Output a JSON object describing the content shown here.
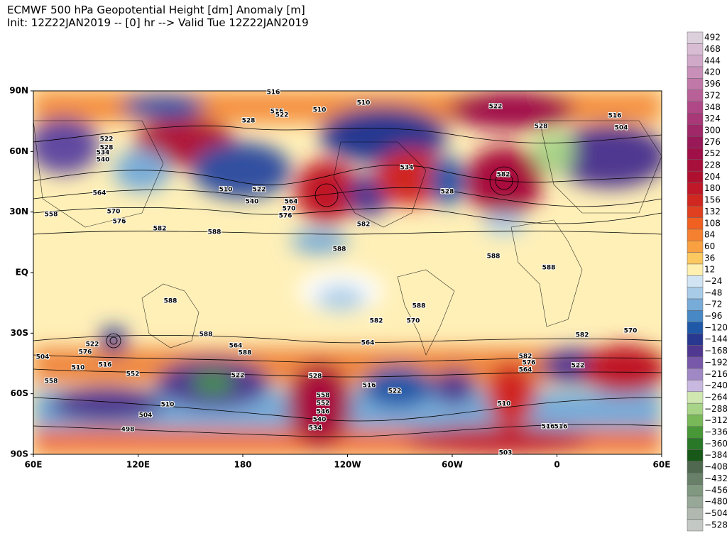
{
  "header": {
    "title": "ECMWF 500 hPa Geopotential Height [dm] Anomaly [m]",
    "subtitle": "Init: 12Z22JAN2019 -- [0] hr --> Valid Tue 12Z22JAN2019"
  },
  "map": {
    "lat_labels": [
      "90N",
      "60N",
      "30N",
      "EQ",
      "30S",
      "60S",
      "90S"
    ],
    "lon_labels": [
      "60E",
      "120E",
      "180",
      "120W",
      "60W",
      "0",
      "60E"
    ],
    "contour_labels": [
      516,
      510,
      510,
      528,
      516,
      522,
      522,
      528,
      516,
      504,
      522,
      528,
      534,
      540,
      564,
      558,
      570,
      576,
      582,
      588,
      510,
      522,
      540,
      564,
      570,
      576,
      534,
      528,
      582,
      582,
      588,
      588,
      588,
      582,
      588,
      588,
      588,
      582,
      570,
      564,
      576,
      522,
      516,
      510,
      504,
      498,
      570,
      558,
      552,
      546,
      540,
      534,
      528,
      522,
      516,
      510,
      503,
      504,
      510,
      516,
      522,
      582,
      576,
      564,
      516,
      558,
      522,
      552,
      588,
      570,
      564
    ]
  },
  "colorbar": {
    "ticks": [
      492,
      468,
      444,
      420,
      396,
      372,
      348,
      324,
      300,
      276,
      252,
      228,
      204,
      180,
      156,
      132,
      108,
      84,
      60,
      36,
      12,
      {
        "value": -24,
        "label": "−24"
      },
      {
        "value": -48,
        "label": "−48"
      },
      {
        "value": -72,
        "label": "−72"
      },
      {
        "value": -96,
        "label": "−96"
      },
      {
        "value": -120,
        "label": "−120"
      },
      {
        "value": -144,
        "label": "−144"
      },
      {
        "value": -168,
        "label": "−168"
      },
      {
        "value": -192,
        "label": "−192"
      },
      {
        "value": -216,
        "label": "−216"
      },
      {
        "value": -240,
        "label": "−240"
      },
      {
        "value": -264,
        "label": "−264"
      },
      {
        "value": -288,
        "label": "−288"
      },
      {
        "value": -312,
        "label": "−312"
      },
      {
        "value": -336,
        "label": "−336"
      },
      {
        "value": -360,
        "label": "−360"
      },
      {
        "value": -384,
        "label": "−384"
      },
      {
        "value": -408,
        "label": "−408"
      },
      {
        "value": -432,
        "label": "−432"
      },
      {
        "value": -456,
        "label": "−456"
      },
      {
        "value": -480,
        "label": "−480"
      },
      {
        "value": -504,
        "label": "−504"
      },
      {
        "value": -528,
        "label": "−528"
      }
    ],
    "colors": [
      "#dcd0dc",
      "#d8bcd4",
      "#d0a8c8",
      "#c890b8",
      "#c078a8",
      "#b86098",
      "#b04888",
      "#a83878",
      "#a02868",
      "#981858",
      "#a01048",
      "#a8103c",
      "#b01030",
      "#c01828",
      "#d02820",
      "#e04020",
      "#f06020",
      "#f58030",
      "#f9a040",
      "#fcc860",
      "#fff0b0",
      "#d0e4f4",
      "#a8cce8",
      "#78acd8",
      "#4888c4",
      "#2058a8",
      "#283890",
      "#503890",
      "#7858a8",
      "#a088c4",
      "#c8b8e0",
      "#d0e8b0",
      "#a8d488",
      "#78b858",
      "#489838",
      "#287828",
      "#185818",
      "#506850",
      "#688068",
      "#809880",
      "#98a898",
      "#b0b8b0",
      "#c4c8c4"
    ]
  }
}
